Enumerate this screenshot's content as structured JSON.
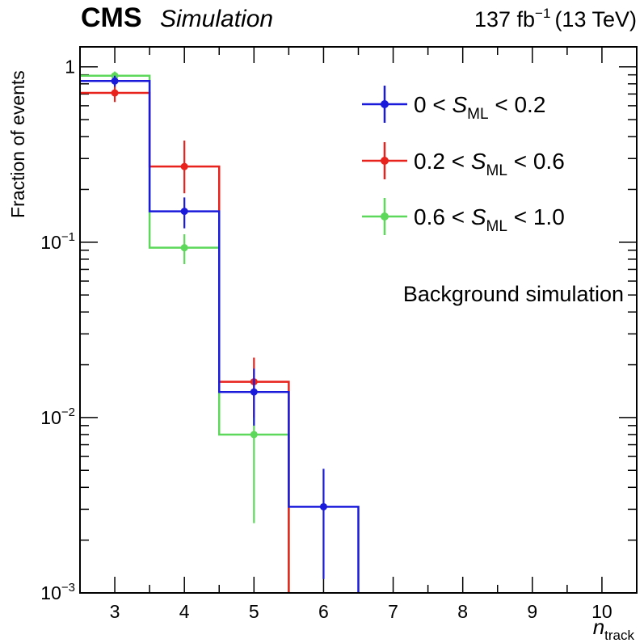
{
  "header": {
    "experiment": "CMS",
    "mode": "Simulation",
    "lumi_value": "137 fb",
    "lumi_exp": "−1",
    "energy": "(13 TeV)"
  },
  "chart_data": {
    "type": "histogram",
    "title": "",
    "xlabel_main": "n",
    "xlabel_sub": "track",
    "ylabel": "Fraction of events",
    "xlim": [
      2.5,
      10.5
    ],
    "ylim": [
      0.001,
      1.3
    ],
    "yscale": "log",
    "x_ticks": [
      "3",
      "4",
      "5",
      "6",
      "7",
      "8",
      "9",
      "10"
    ],
    "x_tick_values": [
      3,
      4,
      5,
      6,
      7,
      8,
      9,
      10
    ],
    "y_ticks": [
      {
        "value": 1,
        "base": "1",
        "exp": ""
      },
      {
        "value": 0.1,
        "base": "10",
        "exp": "−1"
      },
      {
        "value": 0.01,
        "base": "10",
        "exp": "−2"
      },
      {
        "value": 0.001,
        "base": "10",
        "exp": "−3"
      }
    ],
    "bin_edges": [
      2.5,
      3.5,
      4.5,
      5.5,
      6.5
    ],
    "annotation": "Background simulation",
    "legend_position": "top-right",
    "series": [
      {
        "name": "0 < S_ML < 0.2",
        "label_pre": "0 < ",
        "label_var": "S",
        "label_sub": "ML",
        "label_post": " < 0.2",
        "color": "#1a1adb",
        "bins": [
          3,
          4,
          5,
          6
        ],
        "values": [
          0.83,
          0.15,
          0.014,
          0.0031
        ],
        "err_low": [
          0.06,
          0.03,
          0.005,
          0.0019
        ],
        "err_high": [
          0.06,
          0.03,
          0.005,
          0.002
        ]
      },
      {
        "name": "0.2 < S_ML < 0.6",
        "label_pre": "0.2 < ",
        "label_var": "S",
        "label_sub": "ML",
        "label_post": " < 0.6",
        "color": "#e8221c",
        "bins": [
          3,
          4,
          5
        ],
        "values": [
          0.71,
          0.27,
          0.016
        ],
        "err_low": [
          0.08,
          0.08,
          0.006
        ],
        "err_high": [
          0.08,
          0.11,
          0.006
        ]
      },
      {
        "name": "0.6 < S_ML < 1.0",
        "label_pre": "0.6 < ",
        "label_var": "S",
        "label_sub": "ML",
        "label_post": " < 1.0",
        "color": "#5ed85a",
        "bins": [
          3,
          4,
          5
        ],
        "values": [
          0.89,
          0.093,
          0.008
        ],
        "err_low": [
          0.05,
          0.018,
          0.0055
        ],
        "err_high": [
          0.05,
          0.018,
          0.0055
        ]
      }
    ]
  }
}
